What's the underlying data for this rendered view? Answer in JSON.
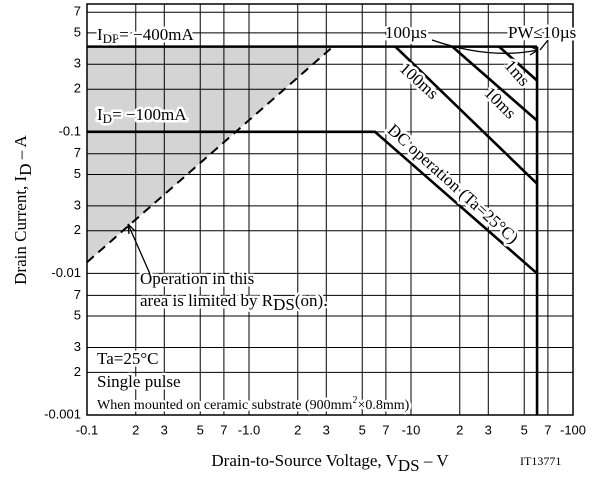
{
  "chart_data": {
    "type": "line",
    "x_scale": "log",
    "y_scale": "log",
    "grid": true,
    "color": "#000000",
    "shade_color": "#d4d4d4",
    "xlim": [
      -0.1,
      -100
    ],
    "ylim": [
      -0.001,
      -0.8
    ],
    "xticks": [
      -0.1,
      {
        "value": -0.2,
        "label": "2"
      },
      {
        "value": -0.3,
        "label": "3"
      },
      {
        "value": -0.5,
        "label": "5"
      },
      {
        "value": -0.7,
        "label": "7"
      },
      {
        "value": -1,
        "label": "-1.0"
      },
      {
        "value": -2,
        "label": "2"
      },
      {
        "value": -3,
        "label": "3"
      },
      {
        "value": -5,
        "label": "5"
      },
      {
        "value": -7,
        "label": "7"
      },
      -10,
      {
        "value": -20,
        "label": "2"
      },
      {
        "value": -30,
        "label": "3"
      },
      {
        "value": -50,
        "label": "5"
      },
      {
        "value": -70,
        "label": "7"
      },
      -100
    ],
    "yticks": [
      -0.001,
      {
        "value": -0.002,
        "label": "2"
      },
      {
        "value": -0.003,
        "label": "3"
      },
      {
        "value": -0.005,
        "label": "5"
      },
      {
        "value": -0.007,
        "label": "7"
      },
      -0.01,
      {
        "value": -0.02,
        "label": "2"
      },
      {
        "value": -0.03,
        "label": "3"
      },
      {
        "value": -0.05,
        "label": "5"
      },
      {
        "value": -0.07,
        "label": "7"
      },
      -0.1,
      {
        "value": -0.2,
        "label": "2"
      },
      {
        "value": -0.3,
        "label": "3"
      },
      {
        "value": -0.5,
        "label": "5"
      },
      {
        "value": -0.7,
        "label": "7"
      }
    ],
    "x_label": [
      "Drain-to-Source Voltage, V",
      "DS",
      " – V"
    ],
    "y_label": [
      "Drain Current, I",
      "D",
      " – A"
    ],
    "series": [
      {
        "name": "DC operation (Ta=25°C)",
        "x": [
          -0.1,
          -6,
          -60
        ],
        "values": [
          -0.1,
          -0.1,
          -0.01
        ]
      },
      {
        "name": "100ms",
        "x": [
          -8,
          -60
        ],
        "values": [
          -0.4,
          -0.043
        ]
      },
      {
        "name": "10ms",
        "x": [
          -18,
          -60
        ],
        "values": [
          -0.4,
          -0.12
        ]
      },
      {
        "name": "1ms",
        "x": [
          -35,
          -60
        ],
        "values": [
          -0.4,
          -0.23
        ]
      },
      {
        "x": [
          -0.1,
          -60
        ],
        "values": [
          -0.4,
          -0.4
        ]
      },
      {
        "x": [
          -60,
          -60
        ],
        "values": [
          -0.4,
          -0.001
        ]
      },
      {
        "x": [
          -0.1,
          -3.3
        ],
        "values": [
          -0.012,
          -0.4
        ],
        "dashed": true,
        "shaded": true
      }
    ],
    "annotations": [
      {
        "parts": [
          "I",
          "DP",
          "= −400mA"
        ]
      },
      {
        "parts": [
          "I",
          "D",
          "= −100mA"
        ]
      },
      {
        "parts": [
          "100µs"
        ]
      },
      {
        "parts": [
          "PW≤10µs"
        ]
      },
      {
        "parts": [
          "Operation in this"
        ]
      },
      {
        "parts": [
          "area is limited by R",
          "DS",
          "(on)."
        ]
      },
      {
        "parts": [
          "Ta=25°C"
        ]
      },
      {
        "parts": [
          "Single pulse"
        ]
      },
      {
        "parts": [
          "When mounted on ceramic substrate (900mm",
          "2",
          "×0.8mm)"
        ]
      },
      {
        "parts": [
          "IT13771"
        ]
      }
    ]
  }
}
